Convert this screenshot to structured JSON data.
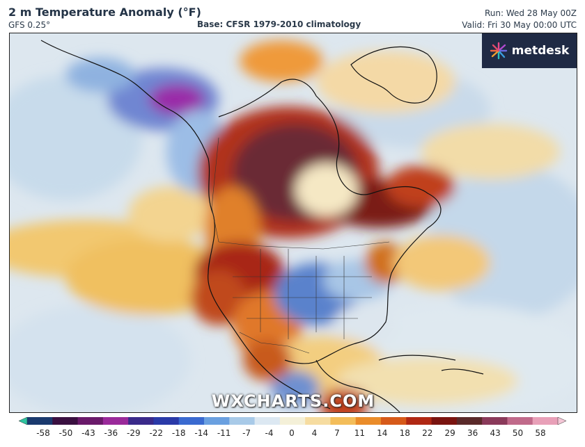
{
  "header": {
    "title": "2 m Temperature Anomaly (°F)",
    "model": "GFS 0.25°",
    "base": "Base: CFSR 1979-2010 climatology",
    "run": "Run: Wed 28 May 00Z",
    "valid": "Valid: Fri 30 May 00:00 UTC"
  },
  "logo": {
    "text": "metdesk",
    "icon": "metdesk-burst-icon"
  },
  "watermark": "WXCHARTS.COM",
  "colorbar": {
    "ticks": [
      "-58",
      "-50",
      "-43",
      "-36",
      "-29",
      "-22",
      "-18",
      "-14",
      "-11",
      "-7",
      "-4",
      "0",
      "4",
      "7",
      "11",
      "14",
      "18",
      "22",
      "29",
      "36",
      "43",
      "50",
      "58"
    ],
    "colors": [
      "#2ec4a0",
      "#1a3a6e",
      "#3a1040",
      "#6a1a6a",
      "#9a2a9a",
      "#3a2a8a",
      "#2a3aa8",
      "#3a6ad0",
      "#6aa0e0",
      "#a8cae8",
      "#dce8f2",
      "#f4f0d8",
      "#f6dca0",
      "#f3bd5a",
      "#ea8c2a",
      "#d65a1a",
      "#b02814",
      "#7a1410",
      "#5a2a2a",
      "#8a3a5a",
      "#c06a8a",
      "#e8a0b8",
      "#f4c6d6"
    ],
    "range": [
      -58,
      58
    ]
  }
}
